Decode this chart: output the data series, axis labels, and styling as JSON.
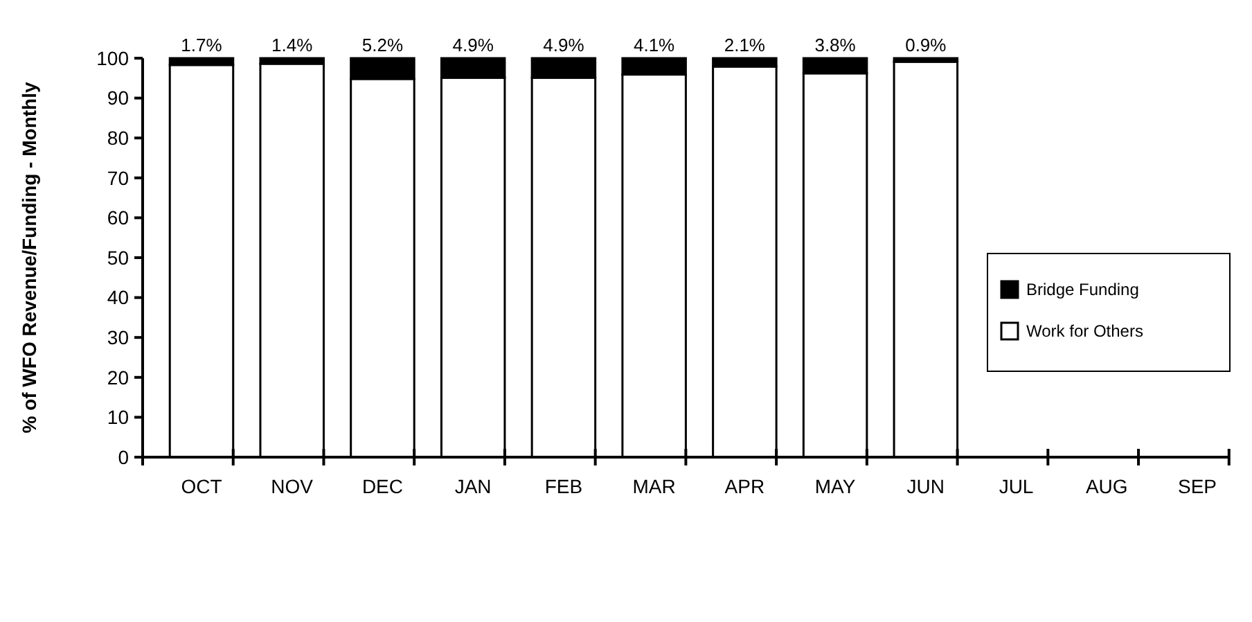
{
  "chart_data": {
    "type": "bar",
    "stacked": true,
    "ylabel": "% of WFO Revenue/Funding - Monthly",
    "categories": [
      "OCT",
      "NOV",
      "DEC",
      "JAN",
      "FEB",
      "MAR",
      "APR",
      "MAY",
      "JUN",
      "JUL",
      "AUG",
      "SEP"
    ],
    "series": [
      {
        "name": "Work for Others",
        "color": "#ffffff",
        "values": [
          98.3,
          98.6,
          94.8,
          95.1,
          95.1,
          95.9,
          97.9,
          96.2,
          99.1,
          null,
          null,
          null
        ]
      },
      {
        "name": "Bridge Funding",
        "color": "#000000",
        "values": [
          1.7,
          1.4,
          5.2,
          4.9,
          4.9,
          4.1,
          2.1,
          3.8,
          0.9,
          null,
          null,
          null
        ],
        "value_labels": [
          "1.7%",
          "1.4%",
          "5.2%",
          "4.9%",
          "4.9%",
          "4.1%",
          "2.1%",
          "3.8%",
          "0.9%",
          null,
          null,
          null
        ]
      }
    ],
    "ylim": [
      0,
      100
    ],
    "yticks": [
      0,
      10,
      20,
      30,
      40,
      50,
      60,
      70,
      80,
      90,
      100
    ],
    "legend": "right",
    "grid": false
  }
}
